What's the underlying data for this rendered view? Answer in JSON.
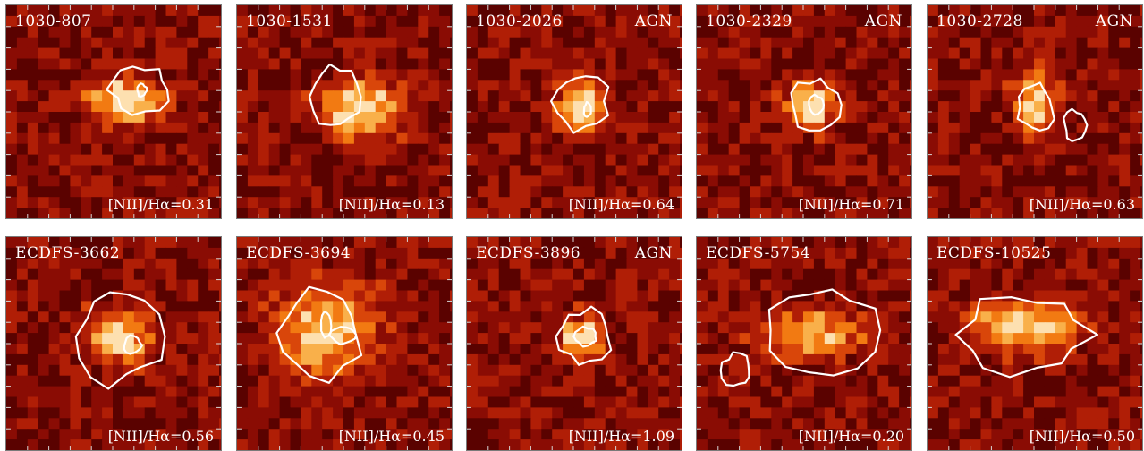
{
  "panels": [
    {
      "name": "1030-807",
      "agn": "",
      "ratio": "[NII]/Hα=0.31"
    },
    {
      "name": "1030-1531",
      "agn": "",
      "ratio": "[NII]/Hα=0.13"
    },
    {
      "name": "1030-2026",
      "agn": "AGN",
      "ratio": "[NII]/Hα=0.64"
    },
    {
      "name": "1030-2329",
      "agn": "AGN",
      "ratio": "[NII]/Hα=0.71"
    },
    {
      "name": "1030-2728",
      "agn": "AGN",
      "ratio": "[NII]/Hα=0.63"
    },
    {
      "name": "ECDFS-3662",
      "agn": "",
      "ratio": "[NII]/Hα=0.56"
    },
    {
      "name": "ECDFS-3694",
      "agn": "",
      "ratio": "[NII]/Hα=0.45"
    },
    {
      "name": "ECDFS-3896",
      "agn": "AGN",
      "ratio": "[NII]/Hα=1.09"
    },
    {
      "name": "ECDFS-5754",
      "agn": "",
      "ratio": "[NII]/Hα=0.20"
    },
    {
      "name": "ECDFS-10525",
      "agn": "",
      "ratio": "[NII]/Hα=0.50"
    }
  ],
  "colors": {
    "background_map": "#8a0c04",
    "contour": "#ffffff",
    "colormap": [
      "#2a0000",
      "#5a0200",
      "#8a0c04",
      "#b01e06",
      "#d9460a",
      "#f27a12",
      "#f9b04a",
      "#fde0b0"
    ]
  }
}
